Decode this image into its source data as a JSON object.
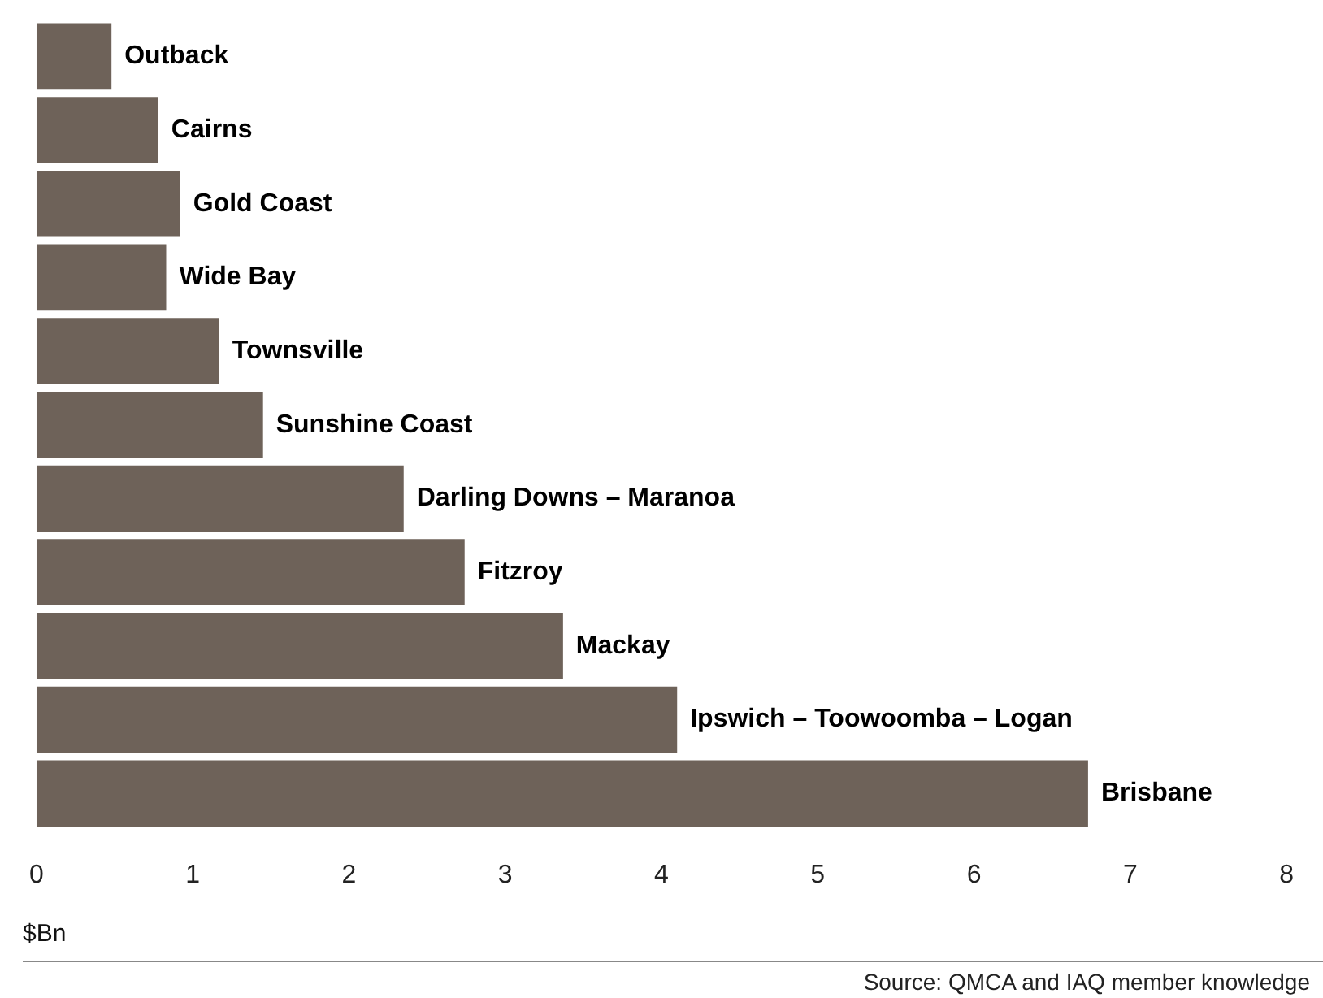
{
  "chart_data": {
    "type": "bar",
    "orientation": "horizontal",
    "xlabel": "$Bn",
    "categories": [
      "Outback",
      "Cairns",
      "Gold Coast",
      "Wide Bay",
      "Townsville",
      "Sunshine Coast",
      "Darling Downs – Maranoa",
      "Fitzroy",
      "Mackay",
      "Ipswich – Toowoomba – Logan",
      "Brisbane"
    ],
    "values": [
      0.48,
      0.78,
      0.92,
      0.83,
      1.17,
      1.45,
      2.35,
      2.74,
      3.37,
      4.1,
      6.73
    ],
    "color": "#6e6259",
    "xlim": [
      0,
      8
    ],
    "xticks": [
      0,
      1,
      2,
      3,
      4,
      5,
      6,
      7,
      8
    ],
    "tick_labels": "x",
    "grid": false,
    "legend": false,
    "annotations": [
      "Source: QMCA and IAQ member knowledge"
    ]
  }
}
